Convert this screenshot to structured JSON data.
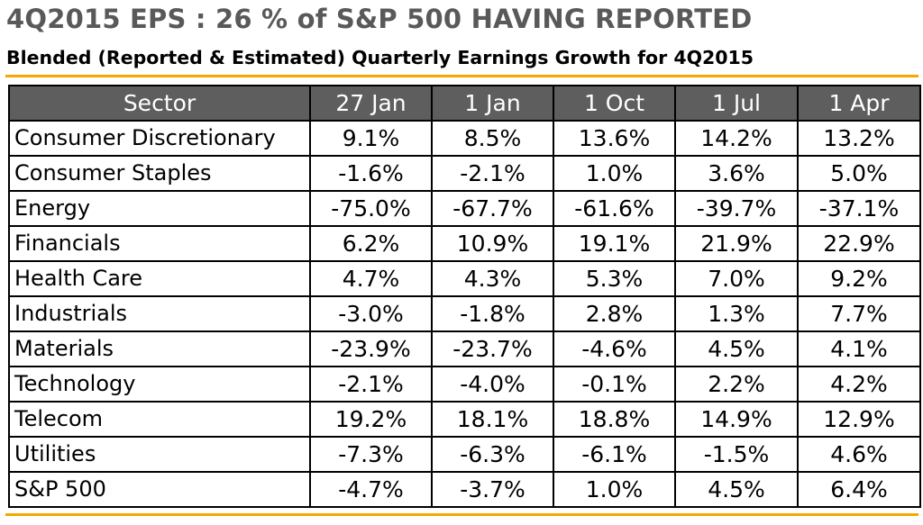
{
  "title": "4Q2015 EPS : 26 % of S&P 500 HAVING REPORTED",
  "subtitle": "Blended (Reported & Estimated) Quarterly Earnings Growth for 4Q2015",
  "colors": {
    "accent_rule": "#f5a800",
    "header_bg": "#5e5e5e",
    "header_text": "#ffffff",
    "title_text": "#595959"
  },
  "chart_data": {
    "type": "table",
    "columns": [
      "Sector",
      "27 Jan",
      "1 Jan",
      "1 Oct",
      "1 Jul",
      "1 Apr"
    ],
    "rows": [
      [
        "Consumer Discretionary",
        "9.1%",
        "8.5%",
        "13.6%",
        "14.2%",
        "13.2%"
      ],
      [
        "Consumer Staples",
        "-1.6%",
        "-2.1%",
        "1.0%",
        "3.6%",
        "5.0%"
      ],
      [
        "Energy",
        "-75.0%",
        "-67.7%",
        "-61.6%",
        "-39.7%",
        "-37.1%"
      ],
      [
        "Financials",
        "6.2%",
        "10.9%",
        "19.1%",
        "21.9%",
        "22.9%"
      ],
      [
        "Health Care",
        "4.7%",
        "4.3%",
        "5.3%",
        "7.0%",
        "9.2%"
      ],
      [
        "Industrials",
        "-3.0%",
        "-1.8%",
        "2.8%",
        "1.3%",
        "7.7%"
      ],
      [
        "Materials",
        "-23.9%",
        "-23.7%",
        "-4.6%",
        "4.5%",
        "4.1%"
      ],
      [
        "Technology",
        "-2.1%",
        "-4.0%",
        "-0.1%",
        "2.2%",
        "4.2%"
      ],
      [
        "Telecom",
        "19.2%",
        "18.1%",
        "18.8%",
        "14.9%",
        "12.9%"
      ],
      [
        "Utilities",
        "-7.3%",
        "-6.3%",
        "-6.1%",
        "-1.5%",
        "4.6%"
      ],
      [
        "S&P 500",
        "-4.7%",
        "-3.7%",
        "1.0%",
        "4.5%",
        "6.4%"
      ]
    ]
  }
}
